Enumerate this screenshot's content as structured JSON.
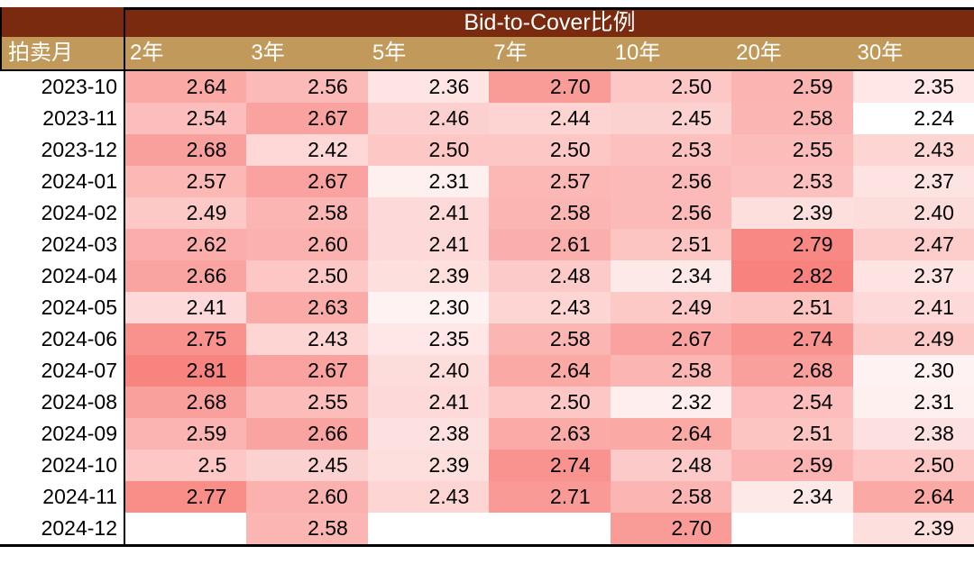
{
  "chart_data": {
    "type": "heatmap",
    "title": "Bid-to-Cover比例",
    "row_axis_label": "拍卖月",
    "columns": [
      "2年",
      "3年",
      "5年",
      "7年",
      "10年",
      "20年",
      "30年"
    ],
    "rows": [
      "2023-10",
      "2023-11",
      "2023-12",
      "2024-01",
      "2024-02",
      "2024-03",
      "2024-04",
      "2024-05",
      "2024-06",
      "2024-07",
      "2024-08",
      "2024-09",
      "2024-10",
      "2024-11",
      "2024-12"
    ],
    "values": [
      [
        "2.64",
        "2.56",
        "2.36",
        "2.70",
        "2.50",
        "2.59",
        "2.35"
      ],
      [
        "2.54",
        "2.67",
        "2.46",
        "2.44",
        "2.45",
        "2.58",
        "2.24"
      ],
      [
        "2.68",
        "2.42",
        "2.50",
        "2.50",
        "2.53",
        "2.55",
        "2.43"
      ],
      [
        "2.57",
        "2.67",
        "2.31",
        "2.57",
        "2.56",
        "2.53",
        "2.37"
      ],
      [
        "2.49",
        "2.58",
        "2.41",
        "2.58",
        "2.56",
        "2.39",
        "2.40"
      ],
      [
        "2.62",
        "2.60",
        "2.41",
        "2.61",
        "2.51",
        "2.79",
        "2.47"
      ],
      [
        "2.66",
        "2.50",
        "2.39",
        "2.48",
        "2.34",
        "2.82",
        "2.37"
      ],
      [
        "2.41",
        "2.63",
        "2.30",
        "2.43",
        "2.49",
        "2.51",
        "2.41"
      ],
      [
        "2.75",
        "2.43",
        "2.35",
        "2.58",
        "2.67",
        "2.74",
        "2.49"
      ],
      [
        "2.81",
        "2.67",
        "2.40",
        "2.64",
        "2.58",
        "2.68",
        "2.30"
      ],
      [
        "2.68",
        "2.55",
        "2.41",
        "2.50",
        "2.32",
        "2.54",
        "2.31"
      ],
      [
        "2.59",
        "2.66",
        "2.38",
        "2.63",
        "2.64",
        "2.51",
        "2.38"
      ],
      [
        "2.5",
        "2.45",
        "2.39",
        "2.74",
        "2.48",
        "2.59",
        "2.50"
      ],
      [
        "2.77",
        "2.60",
        "2.43",
        "2.71",
        "2.58",
        "2.34",
        "2.64"
      ],
      [
        "",
        "2.58",
        "",
        "",
        "2.70",
        "",
        "2.39"
      ]
    ],
    "color_scale": {
      "min": 2.24,
      "max": 2.82,
      "min_color": "#FFFFFF",
      "max_color": "#F8827D"
    }
  },
  "colors": {
    "title_bg": "#7A2A0F",
    "header_bg": "#C19A5B",
    "header_text": "#FFFFFF",
    "cell_text": "#000000",
    "border": "#000000"
  }
}
